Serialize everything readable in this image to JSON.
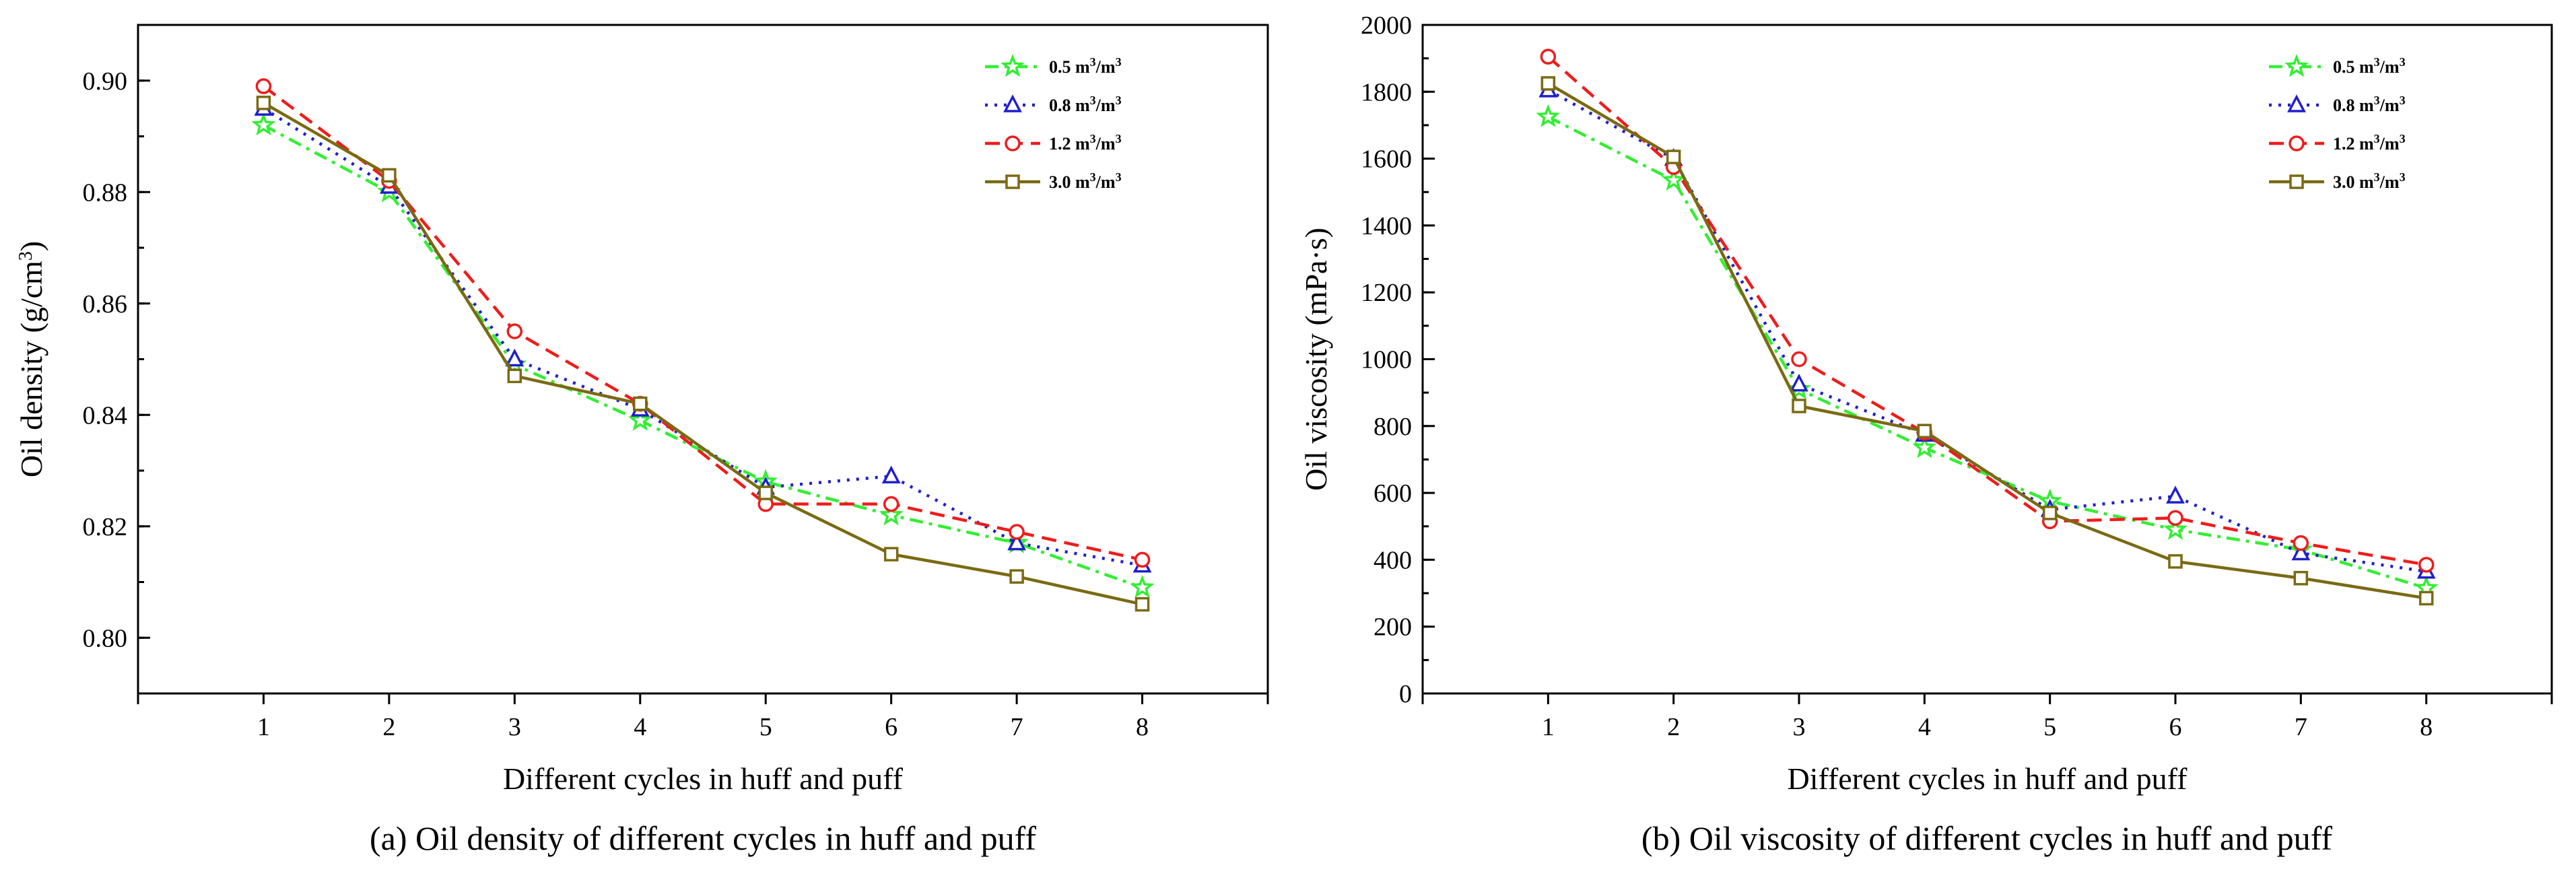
{
  "panels": [
    {
      "caption": "(a) Oil density of different cycles in huff and puff",
      "xlabel": "Different cycles in huff and puff",
      "ylabel": {
        "main": "Oil density (g/cm",
        "sup": "3",
        "end": ")"
      },
      "yticks": [
        "0.80",
        "0.82",
        "0.84",
        "0.86",
        "0.88",
        "0.90"
      ],
      "xticks": [
        "1",
        "2",
        "3",
        "4",
        "5",
        "6",
        "7",
        "8"
      ],
      "legend": [
        {
          "base": "0.5 m",
          "sup1": "3",
          "mid": "/m",
          "sup2": "3"
        },
        {
          "base": "0.8 m",
          "sup1": "3",
          "mid": "/m",
          "sup2": "3"
        },
        {
          "base": "1.2 m",
          "sup1": "3",
          "mid": "/m",
          "sup2": "3"
        },
        {
          "base": "3.0 m",
          "sup1": "3",
          "mid": "/m",
          "sup2": "3"
        }
      ]
    },
    {
      "caption": "(b) Oil viscosity of different cycles in huff and puff",
      "xlabel": "Different cycles in huff and puff",
      "ylabel": {
        "main": "Oil viscosity (mPa·s)",
        "sup": "",
        "end": ""
      },
      "yticks": [
        "0",
        "200",
        "400",
        "600",
        "800",
        "1000",
        "1200",
        "1400",
        "1600",
        "1800",
        "2000"
      ],
      "xticks": [
        "1",
        "2",
        "3",
        "4",
        "5",
        "6",
        "7",
        "8"
      ],
      "legend": [
        {
          "base": "0.5 m",
          "sup1": "3",
          "mid": "/m",
          "sup2": "3"
        },
        {
          "base": "0.8 m",
          "sup1": "3",
          "mid": "/m",
          "sup2": "3"
        },
        {
          "base": "1.2 m",
          "sup1": "3",
          "mid": "/m",
          "sup2": "3"
        },
        {
          "base": "3.0 m",
          "sup1": "3",
          "mid": "/m",
          "sup2": "3"
        }
      ]
    }
  ],
  "chart_data": [
    {
      "type": "line",
      "title": "(a) Oil density of different cycles in huff and puff",
      "xlabel": "Different cycles in huff and puff",
      "ylabel": "Oil density (g/cm3)",
      "x": [
        1,
        2,
        3,
        4,
        5,
        6,
        7,
        8
      ],
      "xlim": [
        0,
        9
      ],
      "ylim": [
        0.79,
        0.91
      ],
      "grid": false,
      "legend_position": "top-right",
      "series": [
        {
          "name": "0.5 m3/m3",
          "color": "#33ee33",
          "marker": "star",
          "dash": "dashdot",
          "values": [
            0.892,
            0.88,
            0.849,
            0.839,
            0.828,
            0.822,
            0.817,
            0.809
          ]
        },
        {
          "name": "0.8 m3/m3",
          "color": "#1f1fcc",
          "marker": "triangle",
          "dash": "dotted",
          "values": [
            0.895,
            0.881,
            0.85,
            0.841,
            0.827,
            0.829,
            0.817,
            0.813
          ]
        },
        {
          "name": "1.2 m3/m3",
          "color": "#ee1c1c",
          "marker": "circle",
          "dash": "dashed",
          "values": [
            0.899,
            0.882,
            0.855,
            0.842,
            0.824,
            0.824,
            0.819,
            0.814
          ]
        },
        {
          "name": "3.0 m3/m3",
          "color": "#7a6a12",
          "marker": "square",
          "dash": "solid",
          "values": [
            0.896,
            0.883,
            0.847,
            0.842,
            0.826,
            0.815,
            0.811,
            0.806
          ]
        }
      ]
    },
    {
      "type": "line",
      "title": "(b) Oil viscosity of different cycles in huff and puff",
      "xlabel": "Different cycles in huff and puff",
      "ylabel": "Oil viscosity (mPa·s)",
      "x": [
        1,
        2,
        3,
        4,
        5,
        6,
        7,
        8
      ],
      "xlim": [
        0,
        9
      ],
      "ylim": [
        0,
        2000
      ],
      "grid": false,
      "legend_position": "top-right",
      "series": [
        {
          "name": "0.5 m3/m3",
          "color": "#33ee33",
          "marker": "star",
          "dash": "dashdot",
          "values": [
            1725,
            1535,
            910,
            735,
            575,
            490,
            430,
            315
          ]
        },
        {
          "name": "0.8 m3/m3",
          "color": "#1f1fcc",
          "marker": "triangle",
          "dash": "dotted",
          "values": [
            1805,
            1600,
            925,
            775,
            550,
            590,
            420,
            365
          ]
        },
        {
          "name": "1.2 m3/m3",
          "color": "#ee1c1c",
          "marker": "circle",
          "dash": "dashed",
          "values": [
            1905,
            1575,
            1000,
            780,
            515,
            525,
            450,
            385
          ]
        },
        {
          "name": "3.0 m3/m3",
          "color": "#7a6a12",
          "marker": "square",
          "dash": "solid",
          "values": [
            1825,
            1605,
            860,
            785,
            540,
            395,
            345,
            285
          ]
        }
      ]
    }
  ]
}
